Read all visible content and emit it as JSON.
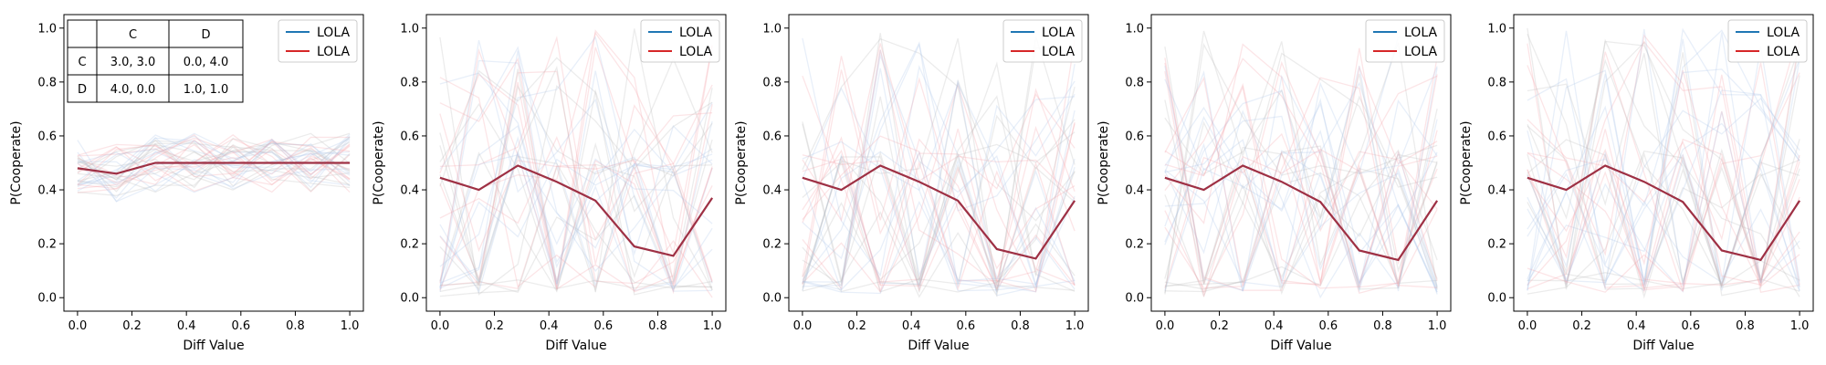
{
  "colors": {
    "series_blue": "#1f77b4",
    "series_red": "#d62728",
    "mean_line": "#9e3044",
    "background_blue": "#aec7e8",
    "background_red": "#f4a3aa",
    "background_gray": "#bcbcbc"
  },
  "payoff_table": {
    "col_headers": [
      "",
      "C",
      "D"
    ],
    "rows": [
      {
        "label": "C",
        "cells": [
          "3.0, 3.0",
          "0.0, 4.0"
        ]
      },
      {
        "label": "D",
        "cells": [
          "4.0, 0.0",
          "1.0, 1.0"
        ]
      }
    ]
  },
  "chart_data": [
    {
      "type": "line",
      "xlabel": "Diff Value",
      "ylabel": "P(Cooperate)",
      "xlim": [
        -0.05,
        1.05
      ],
      "ylim": [
        -0.05,
        1.05
      ],
      "xticks": [
        "0.0",
        "0.2",
        "0.4",
        "0.6",
        "0.8",
        "1.0"
      ],
      "yticks": [
        "0.0",
        "0.2",
        "0.4",
        "0.6",
        "0.8",
        "1.0"
      ],
      "legend": {
        "position": "top-right",
        "entries": [
          {
            "label": "LOLA",
            "color": "#1f77b4"
          },
          {
            "label": "LOLA",
            "color": "#d62728"
          }
        ]
      },
      "x": [
        0.0,
        0.143,
        0.286,
        0.429,
        0.571,
        0.714,
        0.857,
        1.0
      ],
      "series": [
        {
          "color": "#9e3044",
          "values": [
            0.48,
            0.46,
            0.5,
            0.5,
            0.5,
            0.5,
            0.5,
            0.5
          ]
        }
      ]
    },
    {
      "type": "line",
      "xlabel": "Diff Value",
      "ylabel": "P(Cooperate)",
      "xlim": [
        -0.05,
        1.05
      ],
      "ylim": [
        -0.05,
        1.05
      ],
      "xticks": [
        "0.0",
        "0.2",
        "0.4",
        "0.6",
        "0.8",
        "1.0"
      ],
      "yticks": [
        "0.0",
        "0.2",
        "0.4",
        "0.6",
        "0.8",
        "1.0"
      ],
      "legend": {
        "position": "top-right",
        "entries": [
          {
            "label": "LOLA",
            "color": "#1f77b4"
          },
          {
            "label": "LOLA",
            "color": "#d62728"
          }
        ]
      },
      "x": [
        0.0,
        0.143,
        0.286,
        0.429,
        0.571,
        0.714,
        0.857,
        1.0
      ],
      "series": [
        {
          "color": "#9e3044",
          "values": [
            0.445,
            0.4,
            0.49,
            0.43,
            0.36,
            0.19,
            0.155,
            0.37
          ]
        }
      ]
    },
    {
      "type": "line",
      "xlabel": "Diff Value",
      "ylabel": "P(Cooperate)",
      "xlim": [
        -0.05,
        1.05
      ],
      "ylim": [
        -0.05,
        1.05
      ],
      "xticks": [
        "0.0",
        "0.2",
        "0.4",
        "0.6",
        "0.8",
        "1.0"
      ],
      "yticks": [
        "0.0",
        "0.2",
        "0.4",
        "0.6",
        "0.8",
        "1.0"
      ],
      "legend": {
        "position": "top-right",
        "entries": [
          {
            "label": "LOLA",
            "color": "#1f77b4"
          },
          {
            "label": "LOLA",
            "color": "#d62728"
          }
        ]
      },
      "x": [
        0.0,
        0.143,
        0.286,
        0.429,
        0.571,
        0.714,
        0.857,
        1.0
      ],
      "series": [
        {
          "color": "#9e3044",
          "values": [
            0.445,
            0.4,
            0.49,
            0.43,
            0.36,
            0.18,
            0.145,
            0.36
          ]
        }
      ]
    },
    {
      "type": "line",
      "xlabel": "Diff Value",
      "ylabel": "P(Cooperate)",
      "xlim": [
        -0.05,
        1.05
      ],
      "ylim": [
        -0.05,
        1.05
      ],
      "xticks": [
        "0.0",
        "0.2",
        "0.4",
        "0.6",
        "0.8",
        "1.0"
      ],
      "yticks": [
        "0.0",
        "0.2",
        "0.4",
        "0.6",
        "0.8",
        "1.0"
      ],
      "legend": {
        "position": "top-right",
        "entries": [
          {
            "label": "LOLA",
            "color": "#1f77b4"
          },
          {
            "label": "LOLA",
            "color": "#d62728"
          }
        ]
      },
      "x": [
        0.0,
        0.143,
        0.286,
        0.429,
        0.571,
        0.714,
        0.857,
        1.0
      ],
      "series": [
        {
          "color": "#9e3044",
          "values": [
            0.445,
            0.4,
            0.49,
            0.43,
            0.355,
            0.175,
            0.14,
            0.36
          ]
        }
      ]
    },
    {
      "type": "line",
      "xlabel": "Diff Value",
      "ylabel": "P(Cooperate)",
      "xlim": [
        -0.05,
        1.05
      ],
      "ylim": [
        -0.05,
        1.05
      ],
      "xticks": [
        "0.0",
        "0.2",
        "0.4",
        "0.6",
        "0.8",
        "1.0"
      ],
      "yticks": [
        "0.0",
        "0.2",
        "0.4",
        "0.6",
        "0.8",
        "1.0"
      ],
      "legend": {
        "position": "top-right",
        "entries": [
          {
            "label": "LOLA",
            "color": "#1f77b4"
          },
          {
            "label": "LOLA",
            "color": "#d62728"
          }
        ]
      },
      "x": [
        0.0,
        0.143,
        0.286,
        0.429,
        0.571,
        0.714,
        0.857,
        1.0
      ],
      "series": [
        {
          "color": "#9e3044",
          "values": [
            0.445,
            0.4,
            0.49,
            0.43,
            0.355,
            0.175,
            0.14,
            0.36
          ]
        }
      ]
    }
  ]
}
